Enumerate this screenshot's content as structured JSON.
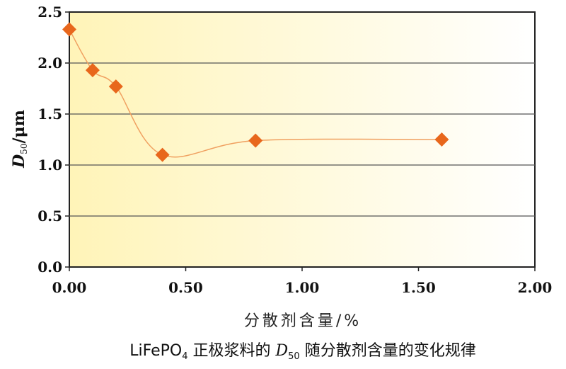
{
  "chart_data": {
    "type": "line",
    "x": [
      0.0,
      0.1,
      0.2,
      0.4,
      0.8,
      1.6
    ],
    "series": [
      {
        "values": [
          2.33,
          1.93,
          1.77,
          1.1,
          1.24,
          1.25
        ]
      }
    ],
    "xlabel": "分散剂含量/%",
    "ylabel": {
      "main": "D",
      "sub": "50",
      "unit": "/μm"
    },
    "xlim": [
      0,
      2.0
    ],
    "ylim": [
      0,
      2.5
    ],
    "xticks": [
      "0.00",
      "0.50",
      "1.00",
      "1.50",
      "2.00"
    ],
    "yticks": [
      "0.0",
      "0.5",
      "1.0",
      "1.5",
      "2.0",
      "2.5"
    ],
    "grid": "horizontal",
    "caption": {
      "a": "LiFePO",
      "b": "4",
      "c": " 正极浆料的 ",
      "d": "D",
      "e": "50",
      "f": " 随分散剂含量的变化规律"
    },
    "colors": {
      "marker": "#e8671c",
      "line": "#f0a060",
      "bg_left": "#fff4b8",
      "bg_right": "#ffffff"
    }
  }
}
